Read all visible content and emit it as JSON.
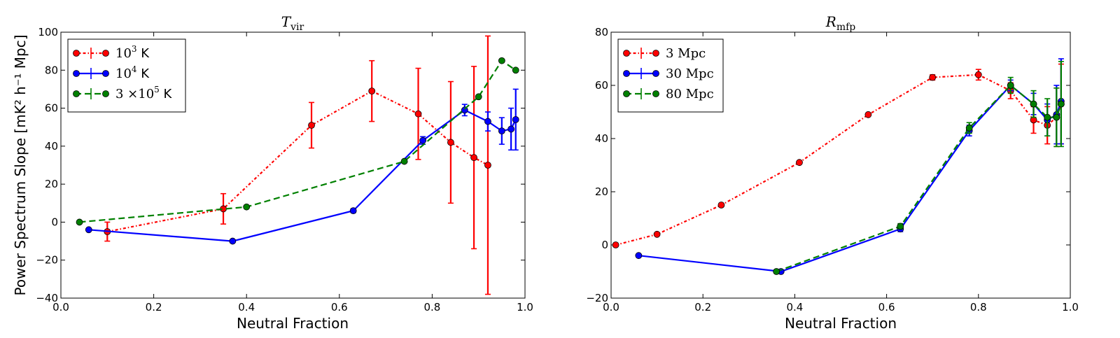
{
  "chart_data": [
    {
      "type": "line",
      "title": "T_vir",
      "title_main": "T",
      "title_sub": "vir",
      "xlabel": "Neutral Fraction",
      "ylabel": "Power Spectrum Slope [mK² h⁻¹ Mpc]",
      "xlim": [
        0.0,
        1.0
      ],
      "ylim": [
        -40,
        100
      ],
      "xticks": [
        "0.0",
        "0.2",
        "0.4",
        "0.6",
        "0.8",
        "1.0"
      ],
      "yticks": [
        "−40",
        "−20",
        "0",
        "20",
        "40",
        "60",
        "80",
        "100"
      ],
      "legend_position": "upper-left",
      "series": [
        {
          "name": "10^3 K",
          "legend_html": [
            "10",
            "3",
            " K"
          ],
          "color": "#ff0000",
          "style": "dashdot",
          "x": [
            0.1,
            0.35,
            0.54,
            0.67,
            0.77,
            0.84,
            0.89,
            0.92
          ],
          "y": [
            -5,
            7,
            51,
            69,
            57,
            42,
            34,
            30
          ],
          "err": [
            5,
            8,
            12,
            16,
            24,
            32,
            48,
            68
          ]
        },
        {
          "name": "10^4 K",
          "legend_html": [
            "10",
            "4",
            " K"
          ],
          "color": "#0000ff",
          "style": "solid",
          "x": [
            0.06,
            0.37,
            0.63,
            0.78,
            0.87,
            0.92,
            0.95,
            0.97,
            0.98
          ],
          "y": [
            -4,
            -10,
            6,
            43,
            59,
            53,
            48,
            49,
            54
          ],
          "err": [
            0,
            0,
            1,
            2,
            3,
            5,
            7,
            11,
            16
          ]
        },
        {
          "name": "3 ×10^5 K",
          "legend_html": [
            "3 ×10",
            "5",
            " K"
          ],
          "color": "#008000",
          "style": "dashed",
          "x": [
            0.04,
            0.4,
            0.74,
            0.9,
            0.95,
            0.98
          ],
          "y": [
            0,
            8,
            32,
            66,
            85,
            80
          ],
          "err": [
            0,
            0,
            0,
            0,
            0,
            0
          ]
        }
      ]
    },
    {
      "type": "line",
      "title": "R_mfp",
      "title_main": "R",
      "title_sub": "mfp",
      "xlabel": "Neutral Fraction",
      "ylabel": "",
      "xlim": [
        0.0,
        1.0
      ],
      "ylim": [
        -20,
        80
      ],
      "xticks": [
        "0.0",
        "0.2",
        "0.4",
        "0.6",
        "0.8",
        "1.0"
      ],
      "yticks": [
        "−20",
        "0",
        "20",
        "40",
        "60",
        "80"
      ],
      "legend_position": "upper-left",
      "series": [
        {
          "name": "3 Mpc",
          "color": "#ff0000",
          "style": "dashdot",
          "x": [
            0.01,
            0.1,
            0.24,
            0.41,
            0.56,
            0.7,
            0.8,
            0.87,
            0.92,
            0.95,
            0.97,
            0.98
          ],
          "y": [
            0,
            4,
            15,
            31,
            49,
            63,
            64,
            58,
            47,
            45,
            48,
            53
          ],
          "err": [
            0,
            0,
            0,
            0,
            0,
            1,
            2,
            3,
            5,
            7,
            11,
            15
          ]
        },
        {
          "name": "30 Mpc",
          "color": "#0000ff",
          "style": "solid",
          "x": [
            0.06,
            0.37,
            0.63,
            0.78,
            0.87,
            0.92,
            0.95,
            0.97,
            0.98
          ],
          "y": [
            -4,
            -10,
            6,
            43,
            60,
            53,
            47,
            49,
            54
          ],
          "err": [
            0,
            0,
            1,
            2,
            2,
            4,
            6,
            11,
            16
          ]
        },
        {
          "name": "80 Mpc",
          "color": "#008000",
          "style": "dashed",
          "x": [
            0.36,
            0.63,
            0.78,
            0.87,
            0.92,
            0.95,
            0.97,
            0.98
          ],
          "y": [
            -10,
            7,
            44,
            60,
            53,
            48,
            48,
            53
          ],
          "err": [
            0,
            1,
            2,
            3,
            5,
            7,
            11,
            16
          ]
        }
      ]
    }
  ]
}
